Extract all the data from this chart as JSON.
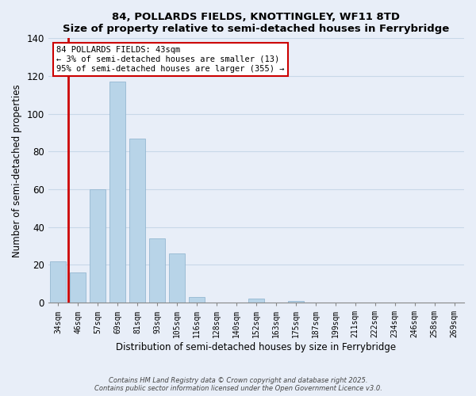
{
  "title": "84, POLLARDS FIELDS, KNOTTINGLEY, WF11 8TD",
  "subtitle": "Size of property relative to semi-detached houses in Ferrybridge",
  "xlabel": "Distribution of semi-detached houses by size in Ferrybridge",
  "ylabel": "Number of semi-detached properties",
  "bar_labels": [
    "34sqm",
    "46sqm",
    "57sqm",
    "69sqm",
    "81sqm",
    "93sqm",
    "105sqm",
    "116sqm",
    "128sqm",
    "140sqm",
    "152sqm",
    "163sqm",
    "175sqm",
    "187sqm",
    "199sqm",
    "211sqm",
    "222sqm",
    "234sqm",
    "246sqm",
    "258sqm",
    "269sqm"
  ],
  "bar_values": [
    22,
    16,
    60,
    117,
    87,
    34,
    26,
    3,
    0,
    0,
    2,
    0,
    1,
    0,
    0,
    0,
    0,
    0,
    0,
    0,
    0
  ],
  "bar_color": "#b8d4e8",
  "vline_color": "#cc0000",
  "vline_x_index": 1,
  "ylim": [
    0,
    140
  ],
  "yticks": [
    0,
    20,
    40,
    60,
    80,
    100,
    120,
    140
  ],
  "annotation_title": "84 POLLARDS FIELDS: 43sqm",
  "annotation_line1": "← 3% of semi-detached houses are smaller (13)",
  "annotation_line2": "95% of semi-detached houses are larger (355) →",
  "annotation_box_color": "#ffffff",
  "annotation_box_edgecolor": "#cc0000",
  "footer1": "Contains HM Land Registry data © Crown copyright and database right 2025.",
  "footer2": "Contains public sector information licensed under the Open Government Licence v3.0.",
  "background_color": "#e8eef8",
  "plot_background_color": "#e8eef8",
  "grid_color": "#c8d8e8"
}
